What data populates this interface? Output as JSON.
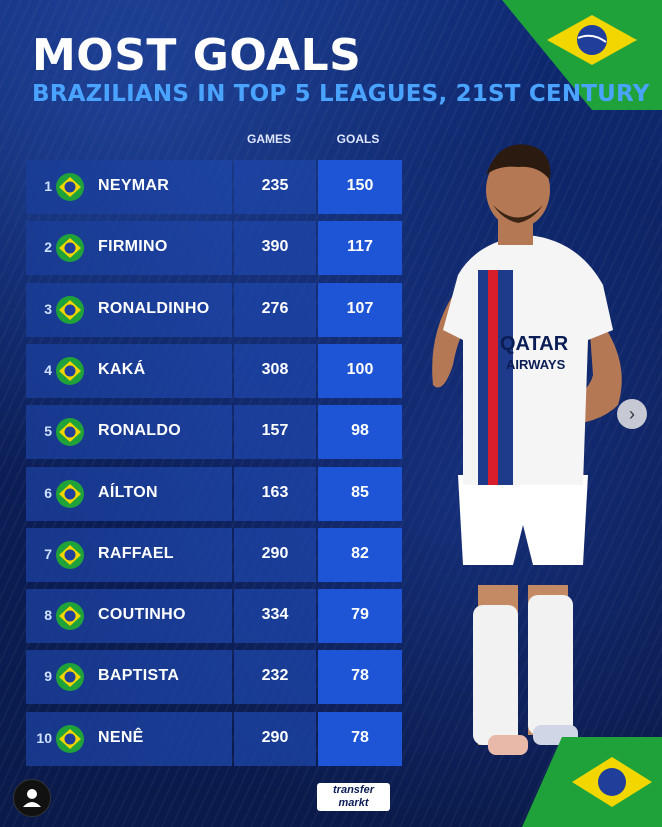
{
  "header": {
    "title": "MOST GOALS",
    "subtitle": "BRAZILIANS IN TOP 5 LEAGUES, 21ST CENTURY"
  },
  "columns": {
    "games": "GAMES",
    "goals": "GOALS"
  },
  "chart_data": {
    "type": "table",
    "columns": [
      "GAMES",
      "GOALS"
    ],
    "rows": [
      {
        "rank": "1",
        "player": "NEYMAR",
        "games": "235",
        "goals": "150"
      },
      {
        "rank": "2",
        "player": "FIRMINO",
        "games": "390",
        "goals": "117"
      },
      {
        "rank": "3",
        "player": "RONALDINHO",
        "games": "276",
        "goals": "107"
      },
      {
        "rank": "4",
        "player": "KAKÁ",
        "games": "308",
        "goals": "100"
      },
      {
        "rank": "5",
        "player": "RONALDO",
        "games": "157",
        "goals": "98"
      },
      {
        "rank": "6",
        "player": "AÍLTON",
        "games": "163",
        "goals": "85"
      },
      {
        "rank": "7",
        "player": "RAFFAEL",
        "games": "290",
        "goals": "82"
      },
      {
        "rank": "8",
        "player": "COUTINHO",
        "games": "334",
        "goals": "79"
      },
      {
        "rank": "9",
        "player": "BAPTISTA",
        "games": "232",
        "goals": "78"
      },
      {
        "rank": "10",
        "player": "NENÊ",
        "games": "290",
        "goals": "78"
      }
    ]
  },
  "jersey": {
    "sponsor_line1": "QATAR",
    "sponsor_line2": "AIRWAYS"
  },
  "logo": {
    "line1": "transfer",
    "line2": "markt"
  },
  "icons": {
    "flag": "brazil-flag-icon",
    "next": "chevron-right-icon",
    "profile": "user-icon"
  },
  "colors": {
    "accent": "#4aa3ff",
    "goals_cell": "#1d55d6",
    "background": "#0c1f5a"
  }
}
